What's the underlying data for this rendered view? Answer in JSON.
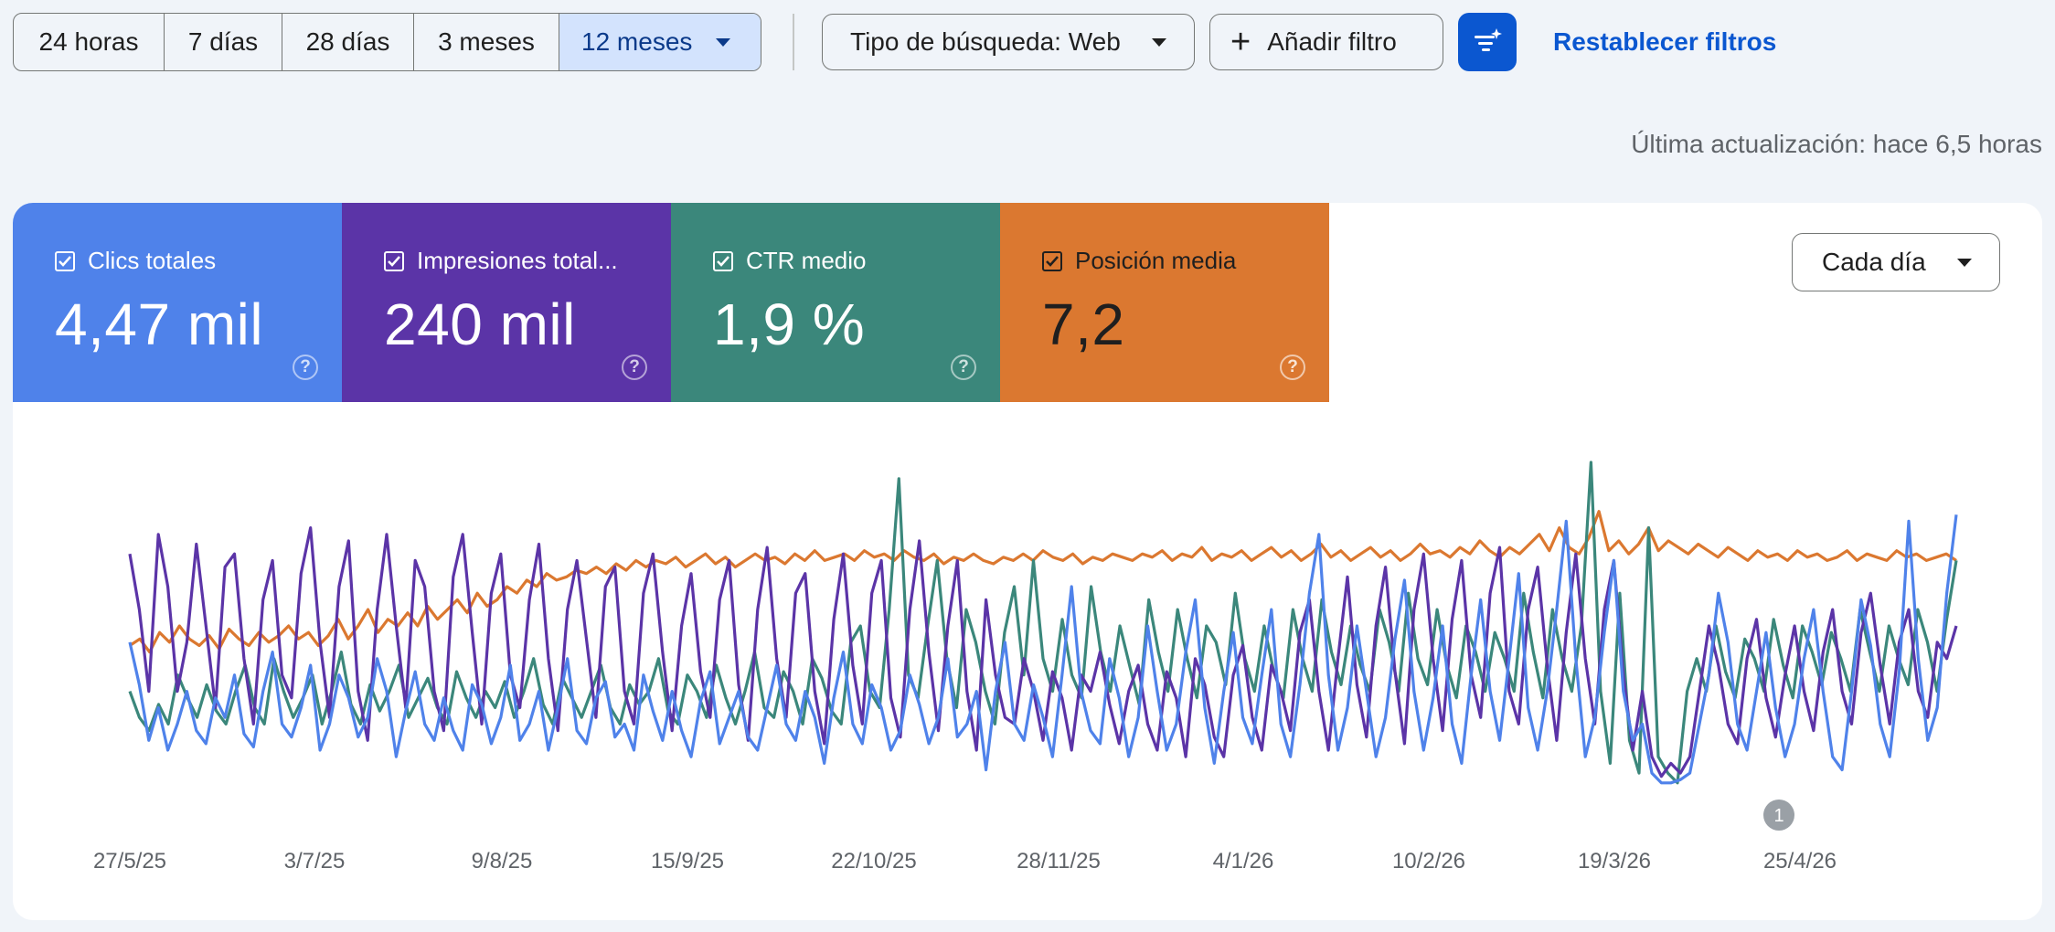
{
  "toolbar": {
    "ranges": [
      "24 horas",
      "7 días",
      "28 días",
      "3 meses"
    ],
    "selected_range": "12 meses",
    "search_type": "Tipo de búsqueda: Web",
    "add_filter": "Añadir filtro",
    "filter_icon": "filter-sparkle-icon",
    "reset": "Restablecer filtros"
  },
  "last_updated": "Última actualización: hace 6,5 horas",
  "metrics": [
    {
      "label": "Clics totales",
      "value": "4,47 mil",
      "color": "#4f82ea",
      "checked": true
    },
    {
      "label": "Impresiones total...",
      "value": "240 mil",
      "color": "#5b34a7",
      "checked": true
    },
    {
      "label": "CTR medio",
      "value": "1,9 %",
      "color": "#3b877b",
      "checked": true
    },
    {
      "label": "Posición media",
      "value": "7,2",
      "color": "#db7830",
      "checked": true
    }
  ],
  "granularity": "Cada día",
  "chart_data": {
    "type": "line",
    "x_tick_labels": [
      "27/5/25",
      "3/7/25",
      "9/8/25",
      "15/9/25",
      "22/10/25",
      "28/11/25",
      "4/1/26",
      "10/2/26",
      "19/3/26",
      "25/4/26"
    ],
    "annotation": "1",
    "series": [
      {
        "color": "#4f82ea",
        "values": [
          0.45,
          0.32,
          0.15,
          0.25,
          0.12,
          0.2,
          0.3,
          0.18,
          0.14,
          0.28,
          0.22,
          0.35,
          0.17,
          0.13,
          0.3,
          0.42,
          0.2,
          0.16,
          0.25,
          0.38,
          0.12,
          0.2,
          0.35,
          0.28,
          0.16,
          0.22,
          0.4,
          0.3,
          0.1,
          0.24,
          0.36,
          0.2,
          0.15,
          0.28,
          0.18,
          0.12,
          0.32,
          0.26,
          0.14,
          0.22,
          0.38,
          0.15,
          0.2,
          0.3,
          0.12,
          0.25,
          0.4,
          0.18,
          0.14,
          0.28,
          0.33,
          0.16,
          0.2,
          0.12,
          0.35,
          0.24,
          0.15,
          0.3,
          0.18,
          0.1,
          0.27,
          0.36,
          0.14,
          0.22,
          0.3,
          0.16,
          0.12,
          0.25,
          0.38,
          0.2,
          0.15,
          0.3,
          0.22,
          0.08,
          0.28,
          0.42,
          0.2,
          0.14,
          0.32,
          0.25,
          0.12,
          0.18,
          0.35,
          0.26,
          0.14,
          0.22,
          0.4,
          0.16,
          0.2,
          0.3,
          0.06,
          0.3,
          0.45,
          0.2,
          0.15,
          0.32,
          0.22,
          0.1,
          0.35,
          0.62,
          0.3,
          0.18,
          0.14,
          0.4,
          0.28,
          0.1,
          0.22,
          0.5,
          0.3,
          0.12,
          0.2,
          0.42,
          0.58,
          0.25,
          0.08,
          0.3,
          0.48,
          0.22,
          0.14,
          0.35,
          0.55,
          0.2,
          0.1,
          0.32,
          0.6,
          0.78,
          0.35,
          0.12,
          0.25,
          0.5,
          0.3,
          0.1,
          0.22,
          0.46,
          0.64,
          0.3,
          0.12,
          0.28,
          0.5,
          0.2,
          0.08,
          0.35,
          0.58,
          0.3,
          0.15,
          0.4,
          0.66,
          0.25,
          0.12,
          0.3,
          0.55,
          0.82,
          0.4,
          0.1,
          0.22,
          0.48,
          0.7,
          0.3,
          0.15,
          0.2,
          0.05,
          0.02,
          0.02,
          0.03,
          0.05,
          0.2,
          0.35,
          0.6,
          0.45,
          0.2,
          0.12,
          0.3,
          0.48,
          0.25,
          0.1,
          0.2,
          0.4,
          0.55,
          0.3,
          0.1,
          0.06,
          0.3,
          0.58,
          0.44,
          0.2,
          0.1,
          0.36,
          0.82,
          0.4,
          0.15,
          0.25,
          0.6,
          0.84
        ]
      },
      {
        "color": "#5b34a7",
        "values": [
          0.72,
          0.55,
          0.3,
          0.78,
          0.62,
          0.3,
          0.45,
          0.75,
          0.5,
          0.25,
          0.68,
          0.72,
          0.4,
          0.2,
          0.58,
          0.7,
          0.35,
          0.28,
          0.66,
          0.8,
          0.45,
          0.22,
          0.62,
          0.76,
          0.3,
          0.15,
          0.55,
          0.78,
          0.5,
          0.25,
          0.7,
          0.62,
          0.3,
          0.18,
          0.65,
          0.78,
          0.48,
          0.2,
          0.6,
          0.72,
          0.35,
          0.25,
          0.58,
          0.75,
          0.4,
          0.18,
          0.55,
          0.7,
          0.46,
          0.22,
          0.62,
          0.68,
          0.3,
          0.2,
          0.6,
          0.72,
          0.42,
          0.18,
          0.5,
          0.66,
          0.36,
          0.22,
          0.58,
          0.7,
          0.32,
          0.15,
          0.55,
          0.74,
          0.4,
          0.22,
          0.6,
          0.66,
          0.3,
          0.14,
          0.52,
          0.72,
          0.38,
          0.2,
          0.6,
          0.7,
          0.28,
          0.16,
          0.55,
          0.76,
          0.42,
          0.18,
          0.5,
          0.7,
          0.3,
          0.12,
          0.58,
          0.35,
          0.22,
          0.2,
          0.4,
          0.3,
          0.15,
          0.36,
          0.28,
          0.12,
          0.35,
          0.3,
          0.42,
          0.26,
          0.14,
          0.3,
          0.38,
          0.2,
          0.12,
          0.36,
          0.28,
          0.1,
          0.4,
          0.32,
          0.16,
          0.1,
          0.35,
          0.44,
          0.22,
          0.12,
          0.38,
          0.3,
          0.18,
          0.48,
          0.58,
          0.3,
          0.12,
          0.4,
          0.65,
          0.32,
          0.16,
          0.5,
          0.68,
          0.36,
          0.14,
          0.55,
          0.72,
          0.4,
          0.18,
          0.52,
          0.7,
          0.35,
          0.22,
          0.6,
          0.74,
          0.3,
          0.2,
          0.55,
          0.68,
          0.38,
          0.15,
          0.48,
          0.72,
          0.4,
          0.2,
          0.55,
          0.7,
          0.35,
          0.12,
          0.3,
          0.1,
          0.04,
          0.08,
          0.05,
          0.1,
          0.3,
          0.5,
          0.38,
          0.2,
          0.14,
          0.4,
          0.52,
          0.28,
          0.16,
          0.35,
          0.5,
          0.3,
          0.18,
          0.42,
          0.55,
          0.3,
          0.2,
          0.48,
          0.6,
          0.38,
          0.2,
          0.45,
          0.55,
          0.3,
          0.22,
          0.45,
          0.4,
          0.5
        ]
      },
      {
        "color": "#3b877b",
        "values": [
          0.3,
          0.22,
          0.18,
          0.26,
          0.2,
          0.35,
          0.28,
          0.22,
          0.32,
          0.24,
          0.2,
          0.3,
          0.38,
          0.25,
          0.2,
          0.4,
          0.3,
          0.22,
          0.28,
          0.35,
          0.2,
          0.3,
          0.42,
          0.26,
          0.2,
          0.32,
          0.24,
          0.3,
          0.38,
          0.22,
          0.28,
          0.34,
          0.25,
          0.2,
          0.36,
          0.28,
          0.22,
          0.3,
          0.25,
          0.33,
          0.22,
          0.3,
          0.4,
          0.26,
          0.2,
          0.34,
          0.28,
          0.22,
          0.3,
          0.38,
          0.25,
          0.2,
          0.32,
          0.26,
          0.3,
          0.4,
          0.24,
          0.2,
          0.35,
          0.3,
          0.22,
          0.38,
          0.28,
          0.2,
          0.3,
          0.42,
          0.25,
          0.22,
          0.36,
          0.3,
          0.2,
          0.4,
          0.34,
          0.24,
          0.2,
          0.45,
          0.5,
          0.3,
          0.25,
          0.55,
          0.95,
          0.35,
          0.28,
          0.5,
          0.7,
          0.4,
          0.25,
          0.55,
          0.45,
          0.3,
          0.2,
          0.48,
          0.62,
          0.35,
          0.7,
          0.4,
          0.3,
          0.52,
          0.35,
          0.28,
          0.62,
          0.42,
          0.3,
          0.5,
          0.38,
          0.26,
          0.58,
          0.42,
          0.3,
          0.55,
          0.4,
          0.28,
          0.5,
          0.45,
          0.32,
          0.6,
          0.4,
          0.3,
          0.5,
          0.36,
          0.28,
          0.55,
          0.4,
          0.3,
          0.58,
          0.42,
          0.32,
          0.5,
          0.38,
          0.3,
          0.55,
          0.45,
          0.3,
          0.6,
          0.4,
          0.32,
          0.55,
          0.38,
          0.28,
          0.5,
          0.42,
          0.3,
          0.48,
          0.4,
          0.3,
          0.6,
          0.42,
          0.28,
          0.55,
          0.4,
          0.3,
          0.5,
          1.0,
          0.3,
          0.08,
          0.6,
          0.15,
          0.05,
          0.8,
          0.1,
          0.05,
          0.02,
          0.3,
          0.4,
          0.3,
          0.5,
          0.36,
          0.28,
          0.46,
          0.4,
          0.3,
          0.52,
          0.38,
          0.28,
          0.5,
          0.42,
          0.32,
          0.48,
          0.4,
          0.3,
          0.55,
          0.42,
          0.3,
          0.5,
          0.4,
          0.32,
          0.55,
          0.45,
          0.3,
          0.52,
          0.7
        ]
      },
      {
        "color": "#db7830",
        "values": [
          0.44,
          0.46,
          0.42,
          0.48,
          0.45,
          0.5,
          0.46,
          0.44,
          0.47,
          0.43,
          0.49,
          0.46,
          0.44,
          0.48,
          0.45,
          0.47,
          0.5,
          0.46,
          0.48,
          0.44,
          0.47,
          0.52,
          0.46,
          0.5,
          0.55,
          0.48,
          0.52,
          0.5,
          0.54,
          0.5,
          0.56,
          0.52,
          0.55,
          0.58,
          0.54,
          0.6,
          0.56,
          0.58,
          0.62,
          0.6,
          0.64,
          0.62,
          0.66,
          0.64,
          0.65,
          0.67,
          0.66,
          0.68,
          0.66,
          0.69,
          0.67,
          0.7,
          0.68,
          0.7,
          0.69,
          0.71,
          0.68,
          0.7,
          0.72,
          0.69,
          0.71,
          0.68,
          0.7,
          0.72,
          0.7,
          0.71,
          0.69,
          0.72,
          0.7,
          0.73,
          0.7,
          0.71,
          0.72,
          0.7,
          0.73,
          0.71,
          0.72,
          0.7,
          0.73,
          0.71,
          0.7,
          0.72,
          0.69,
          0.71,
          0.7,
          0.72,
          0.7,
          0.69,
          0.71,
          0.7,
          0.72,
          0.7,
          0.73,
          0.71,
          0.7,
          0.72,
          0.69,
          0.71,
          0.7,
          0.72,
          0.71,
          0.7,
          0.72,
          0.71,
          0.73,
          0.7,
          0.72,
          0.71,
          0.74,
          0.7,
          0.72,
          0.71,
          0.73,
          0.7,
          0.72,
          0.74,
          0.71,
          0.73,
          0.7,
          0.72,
          0.75,
          0.71,
          0.73,
          0.7,
          0.72,
          0.74,
          0.71,
          0.73,
          0.7,
          0.72,
          0.75,
          0.72,
          0.73,
          0.71,
          0.74,
          0.72,
          0.76,
          0.73,
          0.71,
          0.74,
          0.72,
          0.75,
          0.78,
          0.73,
          0.8,
          0.74,
          0.72,
          0.77,
          0.85,
          0.73,
          0.76,
          0.72,
          0.75,
          0.8,
          0.73,
          0.76,
          0.74,
          0.72,
          0.75,
          0.73,
          0.71,
          0.74,
          0.72,
          0.7,
          0.73,
          0.71,
          0.72,
          0.7,
          0.73,
          0.71,
          0.72,
          0.7,
          0.71,
          0.73,
          0.7,
          0.72,
          0.71,
          0.7,
          0.73,
          0.71,
          0.72,
          0.7,
          0.71,
          0.72,
          0.7
        ]
      }
    ]
  }
}
